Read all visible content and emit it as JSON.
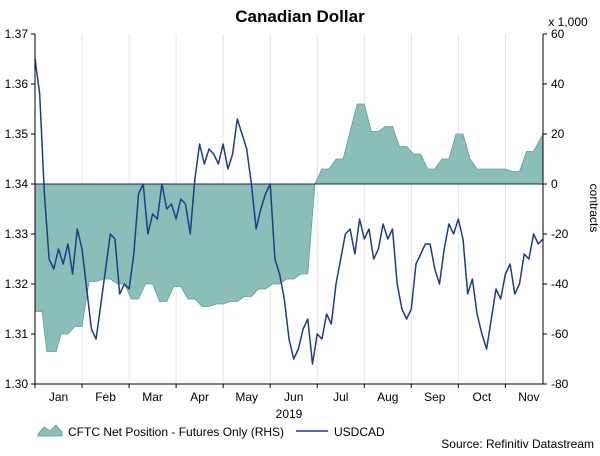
{
  "chart_data": {
    "type": "area+line",
    "title": "Canadian Dollar",
    "xlabel": "2019",
    "ylabel_left": "",
    "ylabel_right": "contracts",
    "right_multiplier_label": "x 1,000",
    "source": "Source: Refinitiv Datastream",
    "categories": [
      "Jan",
      "Feb",
      "Mar",
      "Apr",
      "May",
      "Jun",
      "Jul",
      "Aug",
      "Sep",
      "Oct",
      "Nov"
    ],
    "x_range": [
      0,
      10.8
    ],
    "y_left": {
      "min": 1.3,
      "max": 1.37,
      "ticks": [
        "1.30",
        "1.31",
        "1.32",
        "1.33",
        "1.34",
        "1.35",
        "1.36",
        "1.37"
      ]
    },
    "y_right": {
      "min": -80,
      "max": 60,
      "ticks": [
        "-80",
        "-60",
        "-40",
        "-20",
        "0",
        "20",
        "40",
        "60"
      ]
    },
    "colors": {
      "area_fill": "#8bbdb9",
      "area_stroke": "#5f9f9a",
      "line": "#1f3c88",
      "axis": "#000000",
      "grid": "#dcdcdc"
    },
    "series": [
      {
        "name": "CFTC Net Position - Futures Only (RHS)",
        "axis": "right",
        "style": "area",
        "x": [
          0.0,
          0.15,
          0.25,
          0.45,
          0.55,
          0.7,
          0.85,
          1.0,
          1.15,
          1.3,
          1.45,
          1.6,
          1.75,
          1.9,
          2.05,
          2.2,
          2.35,
          2.5,
          2.65,
          2.8,
          2.95,
          3.1,
          3.25,
          3.4,
          3.55,
          3.7,
          3.85,
          4.0,
          4.15,
          4.3,
          4.45,
          4.6,
          4.75,
          4.9,
          5.05,
          5.2,
          5.35,
          5.5,
          5.65,
          5.8,
          5.95,
          6.1,
          6.25,
          6.4,
          6.55,
          6.7,
          6.85,
          7.0,
          7.15,
          7.3,
          7.45,
          7.6,
          7.75,
          7.9,
          8.05,
          8.2,
          8.35,
          8.5,
          8.65,
          8.8,
          8.95,
          9.1,
          9.25,
          9.4,
          9.55,
          9.7,
          9.85,
          10.0,
          10.15,
          10.3,
          10.45,
          10.6,
          10.8
        ],
        "values": [
          -51,
          -51,
          -67,
          -67,
          -60,
          -60,
          -57,
          -57,
          -39,
          -39,
          -38,
          -38,
          -40,
          -40,
          -46,
          -46,
          -40,
          -40,
          -47,
          -47,
          -41,
          -41,
          -46,
          -46,
          -49,
          -49,
          -48,
          -48,
          -47,
          -47,
          -45,
          -45,
          -42,
          -42,
          -40,
          -40,
          -38,
          -38,
          -36,
          -36,
          0,
          6,
          6,
          10,
          10,
          21,
          32,
          32,
          21,
          21,
          23,
          23,
          15,
          15,
          12,
          12,
          6,
          6,
          10,
          10,
          20,
          20,
          10,
          6,
          6,
          6,
          6,
          6,
          5,
          5,
          13,
          13,
          20
        ]
      },
      {
        "name": "USDCAD",
        "axis": "left",
        "style": "line",
        "x": [
          0.0,
          0.1,
          0.2,
          0.3,
          0.4,
          0.5,
          0.6,
          0.7,
          0.8,
          0.9,
          1.0,
          1.1,
          1.2,
          1.3,
          1.4,
          1.5,
          1.6,
          1.7,
          1.8,
          1.9,
          2.0,
          2.1,
          2.2,
          2.3,
          2.4,
          2.5,
          2.6,
          2.7,
          2.8,
          2.9,
          3.0,
          3.1,
          3.2,
          3.3,
          3.4,
          3.5,
          3.6,
          3.7,
          3.8,
          3.9,
          4.0,
          4.1,
          4.2,
          4.3,
          4.4,
          4.5,
          4.6,
          4.7,
          4.8,
          4.9,
          5.0,
          5.1,
          5.2,
          5.3,
          5.4,
          5.5,
          5.6,
          5.7,
          5.8,
          5.9,
          6.0,
          6.1,
          6.2,
          6.3,
          6.4,
          6.5,
          6.6,
          6.7,
          6.8,
          6.9,
          7.0,
          7.1,
          7.2,
          7.3,
          7.4,
          7.5,
          7.6,
          7.7,
          7.8,
          7.9,
          8.0,
          8.1,
          8.2,
          8.3,
          8.4,
          8.5,
          8.6,
          8.7,
          8.8,
          8.9,
          9.0,
          9.1,
          9.2,
          9.3,
          9.4,
          9.5,
          9.6,
          9.7,
          9.8,
          9.9,
          10.0,
          10.1,
          10.2,
          10.3,
          10.4,
          10.5,
          10.6,
          10.7,
          10.8
        ],
        "values": [
          1.365,
          1.358,
          1.338,
          1.325,
          1.323,
          1.327,
          1.324,
          1.328,
          1.322,
          1.331,
          1.327,
          1.319,
          1.311,
          1.309,
          1.316,
          1.323,
          1.33,
          1.329,
          1.318,
          1.32,
          1.319,
          1.326,
          1.338,
          1.34,
          1.33,
          1.334,
          1.333,
          1.34,
          1.335,
          1.336,
          1.333,
          1.337,
          1.336,
          1.33,
          1.341,
          1.348,
          1.344,
          1.347,
          1.346,
          1.344,
          1.348,
          1.343,
          1.346,
          1.353,
          1.35,
          1.347,
          1.34,
          1.331,
          1.335,
          1.338,
          1.34,
          1.325,
          1.322,
          1.317,
          1.309,
          1.305,
          1.307,
          1.311,
          1.313,
          1.304,
          1.31,
          1.309,
          1.314,
          1.312,
          1.32,
          1.325,
          1.33,
          1.331,
          1.326,
          1.333,
          1.329,
          1.331,
          1.325,
          1.327,
          1.332,
          1.329,
          1.331,
          1.32,
          1.315,
          1.313,
          1.315,
          1.324,
          1.326,
          1.328,
          1.328,
          1.323,
          1.32,
          1.327,
          1.332,
          1.33,
          1.333,
          1.329,
          1.318,
          1.321,
          1.314,
          1.31,
          1.307,
          1.313,
          1.319,
          1.317,
          1.322,
          1.324,
          1.318,
          1.32,
          1.326,
          1.325,
          1.33,
          1.328,
          1.329
        ]
      }
    ],
    "legend": [
      "CFTC Net Position - Futures Only (RHS)",
      "USDCAD"
    ],
    "legend_position": "bottom-left"
  }
}
